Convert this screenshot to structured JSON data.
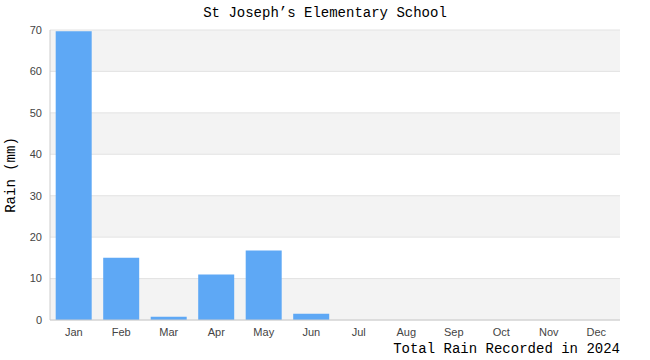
{
  "chart_data": {
    "type": "bar",
    "title": "St Joseph’s Elementary School",
    "x_label": "Total Rain Recorded in 2024",
    "y_label": "Rain (mm)",
    "categories": [
      "Jan",
      "Feb",
      "Mar",
      "Apr",
      "May",
      "Jun",
      "Jul",
      "Aug",
      "Sep",
      "Oct",
      "Nov",
      "Dec"
    ],
    "values": [
      69.7,
      15,
      0.8,
      11,
      16.8,
      1.5,
      0,
      0,
      0,
      0,
      0,
      0
    ],
    "color": "#5ea8f5",
    "ylim": [
      0,
      70
    ],
    "yticks": [
      0,
      10,
      20,
      30,
      40,
      50,
      60,
      70
    ],
    "grid": true
  }
}
